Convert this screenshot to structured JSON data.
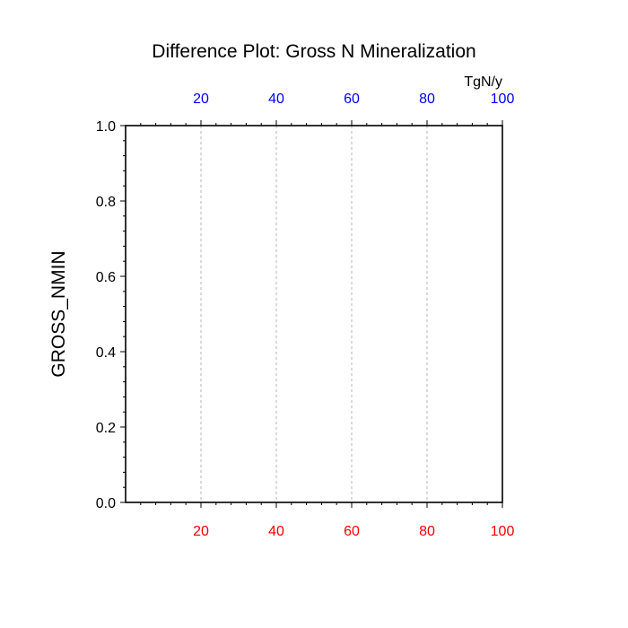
{
  "chart_data": {
    "type": "line",
    "title": "Difference Plot: Gross N Mineralization",
    "ylabel": "GROSS_NMIN",
    "top_axis_units": "TgN/y",
    "xlim": [
      0,
      100
    ],
    "ylim": [
      0,
      1
    ],
    "x_ticks": [
      20,
      40,
      60,
      80,
      100
    ],
    "y_ticks": [
      0.0,
      0.2,
      0.4,
      0.6,
      0.8,
      1.0
    ],
    "y_tick_labels": [
      "0.0",
      "0.2",
      "0.4",
      "0.6",
      "0.8",
      "1.0"
    ],
    "grid": "vertical dashed at major x ticks",
    "series": [],
    "colors": {
      "bottom_tick_labels": "#ff0000",
      "top_tick_labels": "#0000ff",
      "axis": "#000000",
      "grid": "#b4b4b4"
    }
  }
}
